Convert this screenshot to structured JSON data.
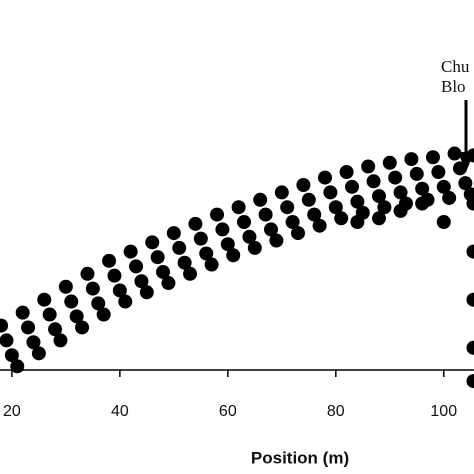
{
  "chart_data": {
    "type": "scatter",
    "xlabel": "Position (m)",
    "annotation": [
      "Chu",
      "Blo"
    ],
    "color": "#000000",
    "xlim": [
      17.8,
      105.6
    ],
    "ylim": [
      0,
      100
    ],
    "xticks": [
      20,
      40,
      60,
      80,
      100
    ],
    "x": [
      18,
      19,
      20,
      21,
      22,
      23,
      24,
      25,
      26,
      27,
      28,
      29,
      30,
      31,
      32,
      33,
      34,
      35,
      36,
      37,
      38,
      39,
      40,
      41,
      42,
      43,
      44,
      45,
      46,
      47,
      48,
      49,
      50,
      51,
      52,
      53,
      54,
      55,
      56,
      57,
      58,
      59,
      60,
      61,
      62,
      63,
      64,
      65,
      66,
      67,
      68,
      69,
      70,
      71,
      72,
      73,
      74,
      75,
      76,
      77,
      78,
      79,
      80,
      81,
      82,
      83,
      84,
      85,
      86,
      87,
      88,
      89,
      90,
      91,
      92,
      93,
      94,
      95,
      96,
      97,
      98,
      99,
      100,
      101,
      102,
      103,
      104,
      105,
      105.5,
      105.5,
      105.5,
      105.5,
      105.5,
      105.5,
      84,
      88,
      92,
      96,
      100
    ],
    "y": [
      12,
      8,
      4,
      1,
      15.5,
      11.5,
      7.5,
      4.5,
      19,
      15,
      11,
      8,
      22.5,
      18.5,
      14.5,
      11.5,
      26,
      22,
      18,
      15,
      29.5,
      25.5,
      21.5,
      18.5,
      32,
      28,
      24,
      21,
      34.5,
      30.5,
      26.5,
      23.5,
      37,
      33,
      29,
      26,
      39.5,
      35.5,
      31.5,
      28.5,
      42,
      38,
      34,
      31,
      44,
      40,
      36,
      33,
      46,
      42,
      38,
      35,
      48,
      44,
      40,
      37,
      50,
      46,
      42,
      39,
      52,
      48,
      44,
      41,
      53.5,
      49.5,
      45.5,
      42.5,
      55,
      51,
      47,
      44,
      56,
      52,
      48,
      45,
      57,
      53,
      49,
      46,
      57.5,
      53.5,
      49.5,
      46.5,
      58.5,
      54.5,
      50.5,
      47.5,
      58,
      45,
      32,
      19,
      6,
      -3,
      40,
      41,
      43,
      45,
      40
    ]
  }
}
